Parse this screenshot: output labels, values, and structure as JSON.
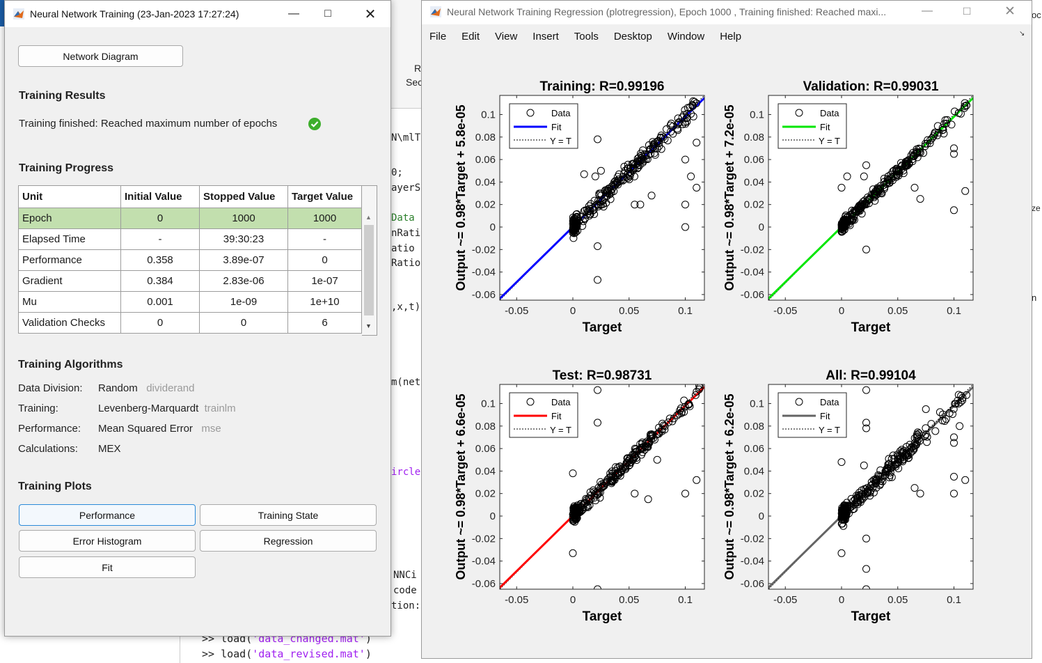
{
  "background": {
    "ribbon_labels": [
      "R",
      "Sec"
    ],
    "path_fragment": "N\\mlTr",
    "code_fragments": [
      "0;",
      "ayerS",
      "Data",
      "nRati",
      "atio",
      "Ratio",
      ",x,t)",
      "m(net",
      "ircle",
      "NNCi",
      "code",
      "tion:"
    ],
    "right_fragments": [
      "oc",
      "ze",
      "n"
    ],
    "cmd_lines": [
      {
        "prompt": ">> ",
        "fn": "load(",
        "arg": "'data_changed.mat'",
        "close": ")"
      },
      {
        "prompt": ">> ",
        "fn": "load(",
        "arg": "'data_revised.mat'",
        "close": ")"
      }
    ]
  },
  "training_window": {
    "title": "Neural Network Training (23-Jan-2023 17:27:24)",
    "network_diagram_button": "Network Diagram",
    "results_heading": "Training Results",
    "results_message": "Training finished: Reached maximum number of epochs",
    "progress_heading": "Training Progress",
    "table": {
      "headers": [
        "Unit",
        "Initial Value",
        "Stopped Value",
        "Target Value"
      ],
      "rows": [
        [
          "Epoch",
          "0",
          "1000",
          "1000"
        ],
        [
          "Elapsed Time",
          "-",
          "39:30:23",
          "-"
        ],
        [
          "Performance",
          "0.358",
          "3.89e-07",
          "0"
        ],
        [
          "Gradient",
          "0.384",
          "2.83e-06",
          "1e-07"
        ],
        [
          "Mu",
          "0.001",
          "1e-09",
          "1e+10"
        ],
        [
          "Validation Checks",
          "0",
          "0",
          "6"
        ]
      ]
    },
    "algorithms_heading": "Training Algorithms",
    "algorithms": [
      {
        "label": "Data Division:",
        "value": "Random",
        "fn": "dividerand"
      },
      {
        "label": "Training:",
        "value": "Levenberg-Marquardt",
        "fn": "trainlm"
      },
      {
        "label": "Performance:",
        "value": "Mean Squared Error",
        "fn": "mse"
      },
      {
        "label": "Calculations:",
        "value": "MEX",
        "fn": ""
      }
    ],
    "plots_heading": "Training Plots",
    "plot_buttons": [
      "Performance",
      "Training State",
      "Error Histogram",
      "Regression",
      "Fit"
    ]
  },
  "figure_window": {
    "title": "Neural Network Training Regression (plotregression), Epoch 1000 , Training finished: Reached maxi...",
    "menu": [
      "File",
      "Edit",
      "View",
      "Insert",
      "Tools",
      "Desktop",
      "Window",
      "Help"
    ]
  },
  "chart_data": [
    {
      "type": "scatter",
      "title": "Training: R=0.99196",
      "xlabel": "Target",
      "ylabel": "Output ~= 0.98*Target + 5.8e-05",
      "xlim": [
        -0.065,
        0.117
      ],
      "ylim": [
        -0.065,
        0.117
      ],
      "xticks": [
        "-0.05",
        "0",
        "0.05",
        "0.1"
      ],
      "yticks": [
        "-0.06",
        "-0.04",
        "-0.02",
        "0",
        "0.02",
        "0.04",
        "0.06",
        "0.08",
        "0.1"
      ],
      "legend": [
        "Data",
        "Fit",
        "Y = T"
      ],
      "legend_position": "top-left",
      "fit_color": "#0000ff",
      "fit": {
        "slope": 0.98,
        "intercept": 5.8e-05
      },
      "point_spread": 0.007,
      "outliers": [
        [
          0.022,
          -0.047
        ],
        [
          0.022,
          -0.017
        ],
        [
          0.0,
          -0.005
        ],
        [
          0.022,
          0.078
        ],
        [
          0.02,
          0.045
        ],
        [
          0.025,
          0.05
        ],
        [
          0.01,
          0.047
        ],
        [
          0.055,
          0.02
        ],
        [
          0.06,
          0.02
        ],
        [
          0.07,
          0.028
        ],
        [
          0.1,
          0.0
        ],
        [
          0.1,
          0.02
        ],
        [
          0.105,
          0.045
        ],
        [
          0.11,
          0.035
        ],
        [
          0.1,
          0.06
        ],
        [
          0.11,
          0.075
        ]
      ]
    },
    {
      "type": "scatter",
      "title": "Validation: R=0.99031",
      "xlabel": "Target",
      "ylabel": "Output ~= 0.98*Target + 7.2e-05",
      "xlim": [
        -0.065,
        0.117
      ],
      "ylim": [
        -0.065,
        0.117
      ],
      "xticks": [
        "-0.05",
        "0",
        "0.05",
        "0.1"
      ],
      "yticks": [
        "-0.06",
        "-0.04",
        "-0.02",
        "0",
        "0.02",
        "0.04",
        "0.06",
        "0.08",
        "0.1"
      ],
      "legend": [
        "Data",
        "Fit",
        "Y = T"
      ],
      "legend_position": "top-left",
      "fit_color": "#00e600",
      "fit": {
        "slope": 0.98,
        "intercept": 7.2e-05
      },
      "point_spread": 0.005,
      "outliers": [
        [
          0.022,
          -0.02
        ],
        [
          0.022,
          0.055
        ],
        [
          0.02,
          0.045
        ],
        [
          0.005,
          0.045
        ],
        [
          0.0,
          0.035
        ],
        [
          0.065,
          0.035
        ],
        [
          0.07,
          0.025
        ],
        [
          0.1,
          0.015
        ],
        [
          0.1,
          0.065
        ],
        [
          0.11,
          0.032
        ],
        [
          0.1,
          0.07
        ]
      ]
    },
    {
      "type": "scatter",
      "title": "Test: R=0.98731",
      "xlabel": "Target",
      "ylabel": "Output ~= 0.98*Target + 6.6e-05",
      "xlim": [
        -0.065,
        0.117
      ],
      "ylim": [
        -0.065,
        0.117
      ],
      "xticks": [
        "-0.05",
        "0",
        "0.05",
        "0.1"
      ],
      "yticks": [
        "-0.06",
        "-0.04",
        "-0.02",
        "0",
        "0.02",
        "0.04",
        "0.06",
        "0.08",
        "0.1"
      ],
      "legend": [
        "Data",
        "Fit",
        "Y = T"
      ],
      "legend_position": "top-left",
      "fit_color": "#ff0000",
      "fit": {
        "slope": 0.98,
        "intercept": 6.6e-05
      },
      "point_spread": 0.006,
      "outliers": [
        [
          0.022,
          -0.065
        ],
        [
          0.022,
          0.112
        ],
        [
          0.022,
          0.083
        ],
        [
          0.0,
          -0.033
        ],
        [
          0.0,
          0.038
        ],
        [
          0.055,
          0.02
        ],
        [
          0.067,
          0.015
        ],
        [
          0.1,
          0.02
        ],
        [
          0.11,
          0.032
        ],
        [
          0.075,
          0.05
        ]
      ]
    },
    {
      "type": "scatter",
      "title": "All: R=0.99104",
      "xlabel": "Target",
      "ylabel": "Output ~= 0.98*Target + 6.2e-05",
      "xlim": [
        -0.065,
        0.117
      ],
      "ylim": [
        -0.065,
        0.117
      ],
      "xticks": [
        "-0.05",
        "0",
        "0.05",
        "0.1"
      ],
      "yticks": [
        "-0.06",
        "-0.04",
        "-0.02",
        "0",
        "0.02",
        "0.04",
        "0.06",
        "0.08",
        "0.1"
      ],
      "legend": [
        "Data",
        "Fit",
        "Y = T"
      ],
      "legend_position": "top-left",
      "fit_color": "#646464",
      "fit": {
        "slope": 0.98,
        "intercept": 6.2e-05
      },
      "point_spread": 0.008,
      "outliers": [
        [
          0.022,
          -0.065
        ],
        [
          0.022,
          -0.047
        ],
        [
          0.022,
          -0.02
        ],
        [
          0.022,
          0.112
        ],
        [
          0.022,
          0.083
        ],
        [
          0.0,
          -0.033
        ],
        [
          0.0,
          0.048
        ],
        [
          0.02,
          0.045
        ],
        [
          0.022,
          0.078
        ],
        [
          0.065,
          0.025
        ],
        [
          0.07,
          0.02
        ],
        [
          0.075,
          0.095
        ],
        [
          0.1,
          0.02
        ],
        [
          0.1,
          0.035
        ],
        [
          0.11,
          0.032
        ],
        [
          0.1,
          0.065
        ],
        [
          0.1,
          0.07
        ],
        [
          0.105,
          0.08
        ]
      ]
    }
  ]
}
